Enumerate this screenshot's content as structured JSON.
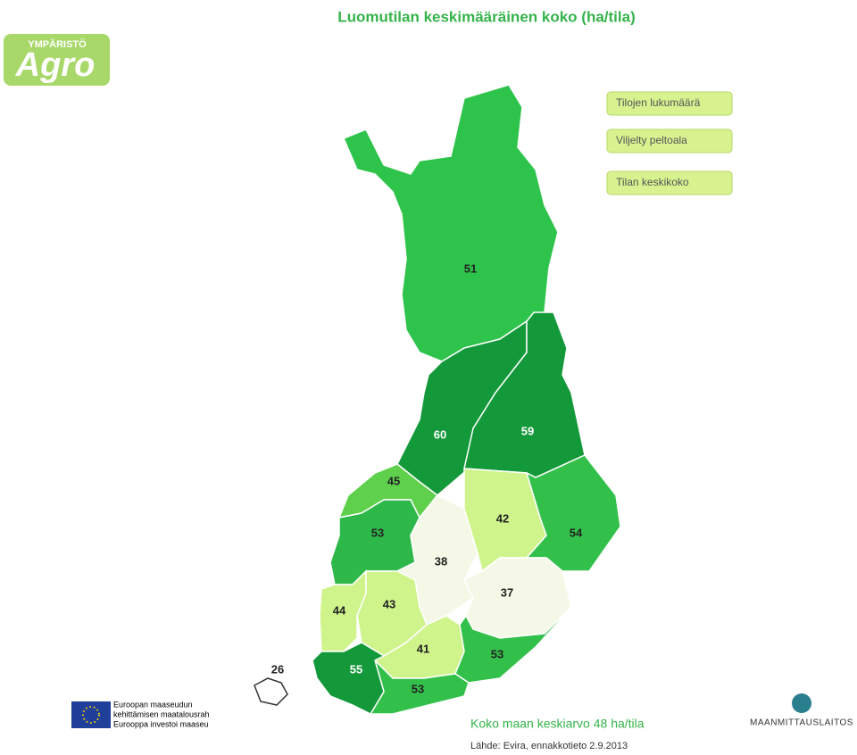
{
  "header": {
    "title": "Luomutilan keskimääräinen koko (ha/tila)",
    "logo_top": "YMPÄRISTÖ",
    "logo_main": "Agro"
  },
  "buttons": [
    "Tilojen lukumäärä",
    "Viljelty peltoala",
    "Tilan keskikoko"
  ],
  "regions": [
    {
      "value": 51,
      "color": "#2ec44c"
    },
    {
      "value": 60,
      "color": "#14993a"
    },
    {
      "value": 59,
      "color": "#14993a"
    },
    {
      "value": 45,
      "color": "#5fd04c"
    },
    {
      "value": 53,
      "color": "#2fb84a"
    },
    {
      "value": 38,
      "color": "#f5f8e6"
    },
    {
      "value": 42,
      "color": "#cff48c"
    },
    {
      "value": 54,
      "color": "#33c04a"
    },
    {
      "value": 37,
      "color": "#f5f8e6"
    },
    {
      "value": 44,
      "color": "#cff48c"
    },
    {
      "value": 43,
      "color": "#cff48c"
    },
    {
      "value": 41,
      "color": "#cff48c"
    },
    {
      "value": 53,
      "color": "#33c04a"
    },
    {
      "value": 53,
      "color": "#33c04a"
    },
    {
      "value": 55,
      "color": "#14993a"
    },
    {
      "value": 26,
      "color": "#ffffff"
    }
  ],
  "footer": {
    "average": "Koko maan keskiarvo 48 ha/tila",
    "source": "Lähde: Evira, ennakkotieto 2.9.2013",
    "eu_lines": [
      "Euroopan maaseudun",
      "kehittämisen maatalousrah",
      "Eurooppa investoi maaseu"
    ],
    "agency": "MAANMITTAUSLAITOS"
  }
}
